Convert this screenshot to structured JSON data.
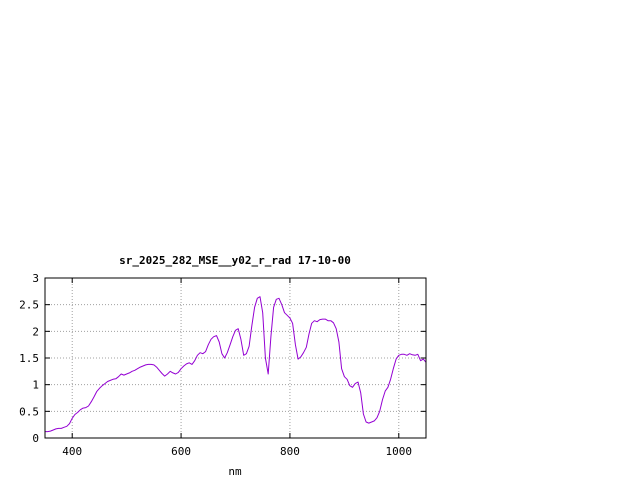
{
  "chart_data": {
    "type": "line",
    "title": "sr_2025_282_MSE__y02_r_rad 17-10-00",
    "xlabel": "nm",
    "ylabel": "",
    "xlim": [
      350,
      1050
    ],
    "ylim": [
      0,
      3
    ],
    "x_ticks": [
      400,
      600,
      800,
      1000
    ],
    "x_tick_labels": [
      "400",
      "600",
      "800",
      "1000"
    ],
    "y_ticks": [
      0,
      0.5,
      1,
      1.5,
      2,
      2.5,
      3
    ],
    "y_tick_labels": [
      "0",
      "0.5",
      "1",
      "1.5",
      "2",
      "2.5",
      "3"
    ],
    "grid": true,
    "line_color": "#9400d3",
    "series": [
      {
        "x": [
          350,
          355,
          360,
          365,
          370,
          375,
          380,
          385,
          390,
          395,
          400,
          405,
          410,
          415,
          420,
          425,
          430,
          435,
          440,
          445,
          450,
          455,
          460,
          465,
          470,
          475,
          480,
          485,
          490,
          495,
          500,
          505,
          510,
          515,
          520,
          525,
          530,
          535,
          540,
          545,
          550,
          555,
          560,
          565,
          570,
          575,
          580,
          585,
          590,
          595,
          600,
          605,
          610,
          615,
          620,
          625,
          630,
          635,
          640,
          645,
          650,
          655,
          660,
          665,
          670,
          675,
          680,
          685,
          690,
          695,
          700,
          705,
          710,
          715,
          720,
          725,
          730,
          735,
          740,
          745,
          750,
          755,
          760,
          765,
          770,
          775,
          780,
          785,
          790,
          795,
          800,
          805,
          810,
          815,
          820,
          825,
          830,
          835,
          840,
          845,
          850,
          855,
          860,
          865,
          870,
          875,
          880,
          885,
          890,
          895,
          900,
          905,
          910,
          915,
          920,
          925,
          930,
          935,
          940,
          945,
          950,
          955,
          960,
          965,
          970,
          975,
          980,
          985,
          990,
          995,
          1000,
          1005,
          1010,
          1015,
          1020,
          1025,
          1030,
          1035,
          1040,
          1045,
          1050
        ],
        "values": [
          0.12,
          0.12,
          0.13,
          0.15,
          0.17,
          0.18,
          0.18,
          0.2,
          0.22,
          0.27,
          0.37,
          0.44,
          0.48,
          0.53,
          0.56,
          0.57,
          0.6,
          0.68,
          0.77,
          0.87,
          0.93,
          0.98,
          1.02,
          1.06,
          1.08,
          1.1,
          1.11,
          1.15,
          1.2,
          1.18,
          1.2,
          1.22,
          1.25,
          1.27,
          1.3,
          1.33,
          1.35,
          1.37,
          1.38,
          1.38,
          1.37,
          1.33,
          1.27,
          1.21,
          1.16,
          1.2,
          1.25,
          1.22,
          1.2,
          1.23,
          1.3,
          1.35,
          1.39,
          1.41,
          1.38,
          1.45,
          1.55,
          1.6,
          1.58,
          1.62,
          1.75,
          1.85,
          1.9,
          1.92,
          1.8,
          1.58,
          1.5,
          1.6,
          1.75,
          1.9,
          2.02,
          2.05,
          1.85,
          1.55,
          1.58,
          1.72,
          2.1,
          2.45,
          2.62,
          2.65,
          2.35,
          1.5,
          1.2,
          1.9,
          2.45,
          2.6,
          2.62,
          2.5,
          2.35,
          2.3,
          2.25,
          2.15,
          1.75,
          1.48,
          1.52,
          1.6,
          1.7,
          1.95,
          2.15,
          2.2,
          2.18,
          2.22,
          2.23,
          2.23,
          2.2,
          2.2,
          2.16,
          2.05,
          1.8,
          1.3,
          1.15,
          1.1,
          0.98,
          0.95,
          1.02,
          1.05,
          0.85,
          0.45,
          0.3,
          0.28,
          0.3,
          0.32,
          0.38,
          0.5,
          0.72,
          0.88,
          0.95,
          1.1,
          1.3,
          1.48,
          1.55,
          1.57,
          1.57,
          1.55,
          1.58,
          1.56,
          1.55,
          1.57,
          1.45,
          1.48,
          1.42
        ]
      }
    ]
  }
}
